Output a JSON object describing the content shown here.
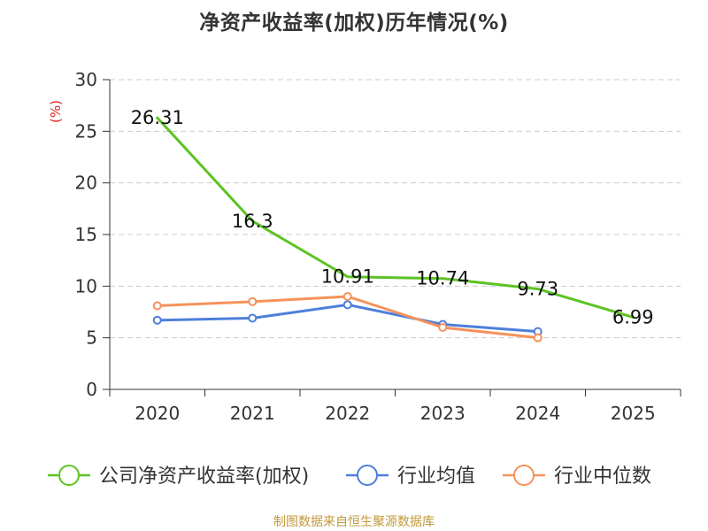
{
  "chart_data": {
    "type": "line",
    "title": "净资产收益率(加权)历年情况(%)",
    "ylabel": "(%)",
    "xlabel": "",
    "ylim": [
      0,
      30
    ],
    "yticks": [
      0,
      5,
      10,
      15,
      20,
      25,
      30
    ],
    "categories": [
      "2020",
      "2021",
      "2022",
      "2023",
      "2024",
      "2025"
    ],
    "grid": "horizontal-dashed",
    "legend_position": "bottom",
    "series": [
      {
        "name": "公司净资产收益率(加权)",
        "color": "#5cc323",
        "values": [
          26.31,
          16.3,
          10.91,
          10.74,
          9.73,
          6.99
        ],
        "labels": [
          "26.31",
          "16.3",
          "10.91",
          "10.74",
          "9.73",
          "6.99"
        ],
        "show_markers": false,
        "show_labels": true
      },
      {
        "name": "行业均值",
        "color": "#4d7fdb",
        "values": [
          6.7,
          6.9,
          8.2,
          6.3,
          5.6,
          null
        ],
        "show_markers": true,
        "show_labels": false
      },
      {
        "name": "行业中位数",
        "color": "#f5925a",
        "values": [
          8.1,
          8.5,
          9.0,
          6.0,
          5.0,
          null
        ],
        "show_markers": true,
        "show_labels": false
      }
    ]
  },
  "source": "制图数据来自恒生聚源数据库"
}
